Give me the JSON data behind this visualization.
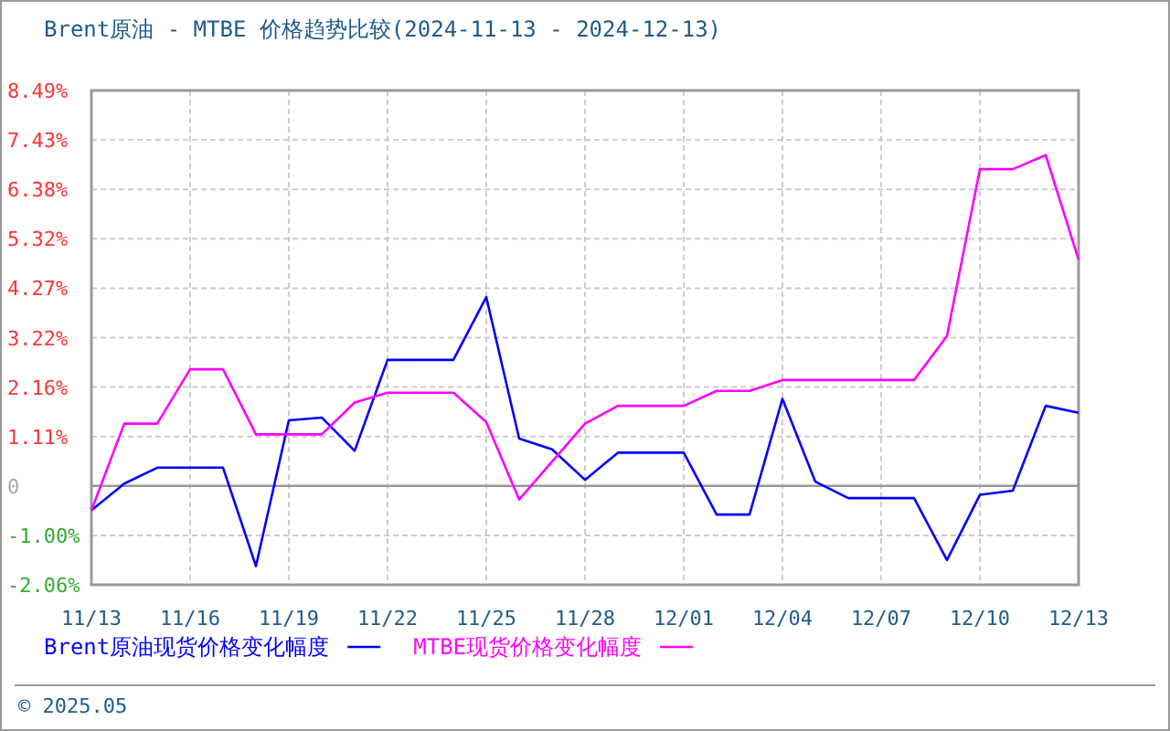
{
  "chart_data": {
    "type": "line",
    "title": "Brent原油 - MTBE 价格趋势比较(2024-11-13 - 2024-12-13)",
    "x": [
      "2024-11-13",
      "2024-11-14",
      "2024-11-15",
      "2024-11-16",
      "2024-11-17",
      "2024-11-18",
      "2024-11-19",
      "2024-11-20",
      "2024-11-21",
      "2024-11-22",
      "2024-11-23",
      "2024-11-24",
      "2024-11-25",
      "2024-11-26",
      "2024-11-27",
      "2024-11-28",
      "2024-11-29",
      "2024-11-30",
      "2024-12-01",
      "2024-12-02",
      "2024-12-03",
      "2024-12-04",
      "2024-12-05",
      "2024-12-06",
      "2024-12-07",
      "2024-12-08",
      "2024-12-09",
      "2024-12-10",
      "2024-12-11",
      "2024-12-12",
      "2024-12-13"
    ],
    "series": [
      {
        "name": "Brent原油现货价格变化幅度",
        "color": "#0000ff",
        "values": [
          -0.47,
          0.1,
          0.44,
          0.44,
          0.44,
          -1.66,
          1.45,
          1.51,
          0.8,
          2.74,
          2.74,
          2.74,
          4.08,
          1.06,
          0.83,
          0.18,
          0.76,
          0.76,
          0.76,
          -0.56,
          -0.56,
          1.91,
          0.14,
          -0.21,
          -0.21,
          -0.21,
          -1.53,
          -0.14,
          -0.05,
          1.76,
          1.61
        ]
      },
      {
        "name": "MTBE现货价格变化幅度",
        "color": "#ff00ff",
        "values": [
          -0.47,
          1.38,
          1.38,
          2.54,
          2.54,
          1.15,
          1.15,
          1.15,
          1.83,
          2.04,
          2.04,
          2.04,
          1.41,
          -0.24,
          0.57,
          1.38,
          1.76,
          1.76,
          1.76,
          2.08,
          2.08,
          2.31,
          2.31,
          2.31,
          2.31,
          2.31,
          3.25,
          6.81,
          6.81,
          7.11,
          4.88
        ]
      }
    ],
    "xlim": [
      "2024-11-13",
      "2024-12-13"
    ],
    "xticks": [
      {
        "value": "2024-11-13",
        "label": "11/13"
      },
      {
        "value": "2024-11-16",
        "label": "11/16"
      },
      {
        "value": "2024-11-19",
        "label": "11/19"
      },
      {
        "value": "2024-11-22",
        "label": "11/22"
      },
      {
        "value": "2024-11-25",
        "label": "11/25"
      },
      {
        "value": "2024-11-28",
        "label": "11/28"
      },
      {
        "value": "2024-12-01",
        "label": "12/01"
      },
      {
        "value": "2024-12-04",
        "label": "12/04"
      },
      {
        "value": "2024-12-07",
        "label": "12/07"
      },
      {
        "value": "2024-12-10",
        "label": "12/10"
      },
      {
        "value": "2024-12-13",
        "label": "12/13"
      }
    ],
    "ylim": [
      -2.06,
      8.49
    ],
    "yticks": [
      {
        "value": -2.06,
        "label": "-2.06%"
      },
      {
        "value": -1.005,
        "label": "-1.00%"
      },
      {
        "value": 0.05,
        "label": "0"
      },
      {
        "value": 1.105,
        "label": "1.11%"
      },
      {
        "value": 2.16,
        "label": "2.16%"
      },
      {
        "value": 3.215,
        "label": "3.22%"
      },
      {
        "value": 4.27,
        "label": "4.27%"
      },
      {
        "value": 5.325,
        "label": "5.32%"
      },
      {
        "value": 6.38,
        "label": "6.38%"
      },
      {
        "value": 7.435,
        "label": "7.43%"
      },
      {
        "value": 8.49,
        "label": "8.49%"
      }
    ],
    "ref_lines": [
      {
        "axis": "y",
        "value": 0.05,
        "color": "#999999"
      }
    ],
    "grid": true,
    "legend": "bottom",
    "marker": "none",
    "line_style": "solid",
    "annotations": [
      "© 2025.05"
    ]
  }
}
